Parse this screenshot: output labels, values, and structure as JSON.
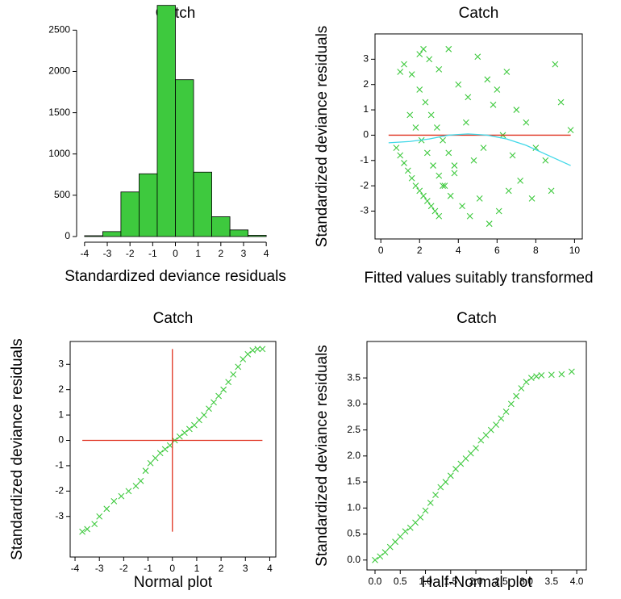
{
  "chart_data": [
    {
      "type": "histogram",
      "title": "Catch",
      "x_label": "Standardized deviance residuals",
      "color": "#3ec93e",
      "box": false,
      "bins": [
        -4,
        -3.2,
        -2.4,
        -1.6,
        -0.8,
        0,
        0.8,
        1.6,
        2.4,
        3.2,
        4
      ],
      "values": [
        10,
        60,
        540,
        760,
        2800,
        1900,
        780,
        240,
        80,
        15
      ],
      "xlim": [
        -4.35,
        4.35
      ],
      "xticks": [
        -4,
        -3,
        -2,
        -1,
        0,
        1,
        2,
        3,
        4
      ],
      "ylim": [
        0,
        2650
      ],
      "yticks": [
        0,
        500,
        1000,
        1500,
        2000,
        2500
      ]
    },
    {
      "type": "scatter",
      "title": "Catch",
      "x_label": "Fitted values suitably transformed",
      "y_label": "Standardized deviance residuals",
      "color": "#3ec93e",
      "box": true,
      "x": [
        0.8,
        1.0,
        1.2,
        1.4,
        1.6,
        1.8,
        2.0,
        2.2,
        2.4,
        2.6,
        2.8,
        3.0,
        1.5,
        1.8,
        2.1,
        2.4,
        2.7,
        3.0,
        3.3,
        3.6,
        2.0,
        2.3,
        2.6,
        2.9,
        3.2,
        3.5,
        3.8,
        1.2,
        1.6,
        2.0,
        2.5,
        3.0,
        3.5,
        4.0,
        4.5,
        5.0,
        5.5,
        6.0,
        6.5,
        7.0,
        7.5,
        8.0,
        8.5,
        9.0,
        9.8,
        3.2,
        3.8,
        4.2,
        4.6,
        5.1,
        5.6,
        6.1,
        6.6,
        7.2,
        4.4,
        5.3,
        6.3,
        1.0,
        2.2,
        4.8,
        5.8,
        6.8,
        7.8,
        8.8,
        9.3
      ],
      "y": [
        -0.5,
        -0.8,
        -1.1,
        -1.4,
        -1.7,
        -2.0,
        -2.2,
        -2.4,
        -2.6,
        -2.8,
        -3.0,
        -3.2,
        0.8,
        0.3,
        -0.2,
        -0.7,
        -1.2,
        -1.6,
        -2.0,
        -2.4,
        1.8,
        1.3,
        0.8,
        0.3,
        -0.2,
        -0.7,
        -1.2,
        2.8,
        2.4,
        3.2,
        3.0,
        2.6,
        3.4,
        2.0,
        1.5,
        3.1,
        2.2,
        1.8,
        2.5,
        1.0,
        0.5,
        -0.5,
        -1.0,
        2.8,
        0.2,
        -2.0,
        -1.5,
        -2.8,
        -3.2,
        -2.5,
        -3.5,
        -3.0,
        -2.2,
        -1.8,
        0.5,
        -0.5,
        0.0,
        2.5,
        3.4,
        -1.0,
        1.2,
        -0.8,
        -2.5,
        -2.2,
        1.3
      ],
      "lines": [
        {
          "color": "#e0301e",
          "x": [
            0.4,
            9.8
          ],
          "y": [
            0,
            0
          ]
        },
        {
          "color": "#40d8e8",
          "x": [
            0.4,
            1.5,
            2.5,
            3.5,
            4.5,
            5.5,
            6.5,
            7.5,
            8.5,
            9.8
          ],
          "y": [
            -0.3,
            -0.25,
            -0.15,
            0,
            0.05,
            0,
            -0.15,
            -0.4,
            -0.75,
            -1.2
          ]
        }
      ],
      "xlim": [
        -0.3,
        10.4
      ],
      "xticks": [
        0,
        2,
        4,
        6,
        8,
        10
      ],
      "ylim": [
        -4.1,
        4.0
      ],
      "yticks": [
        -3,
        -2,
        -1,
        0,
        1,
        2,
        3
      ]
    },
    {
      "type": "scatter",
      "title": "Catch",
      "x_label": "Normal plot",
      "y_label": "Standardized deviance residuals",
      "color": "#3ec93e",
      "box": true,
      "x": [
        -3.7,
        -3.5,
        -3.2,
        -3.0,
        -2.7,
        -2.4,
        -2.1,
        -1.8,
        -1.5,
        -1.3,
        -1.1,
        -0.9,
        -0.7,
        -0.5,
        -0.3,
        -0.1,
        0.1,
        0.3,
        0.5,
        0.7,
        0.9,
        1.1,
        1.3,
        1.5,
        1.7,
        1.9,
        2.1,
        2.3,
        2.5,
        2.7,
        2.9,
        3.1,
        3.3,
        3.5,
        3.7
      ],
      "y": [
        -3.6,
        -3.5,
        -3.3,
        -3.0,
        -2.7,
        -2.4,
        -2.2,
        -2.0,
        -1.8,
        -1.6,
        -1.2,
        -0.9,
        -0.7,
        -0.5,
        -0.35,
        -0.2,
        0.0,
        0.15,
        0.3,
        0.45,
        0.6,
        0.8,
        1.0,
        1.25,
        1.5,
        1.75,
        2.0,
        2.3,
        2.6,
        2.9,
        3.2,
        3.4,
        3.55,
        3.6,
        3.6
      ],
      "lines": [
        {
          "color": "#e0301e",
          "x": [
            0,
            0
          ],
          "y": [
            -3.6,
            3.6
          ]
        },
        {
          "color": "#e0301e",
          "x": [
            -3.7,
            3.7
          ],
          "y": [
            0,
            0
          ]
        }
      ],
      "xlim": [
        -4.2,
        4.25
      ],
      "xticks": [
        -4,
        -3,
        -2,
        -1,
        0,
        1,
        2,
        3,
        4
      ],
      "ylim": [
        -4.6,
        3.9
      ],
      "yticks": [
        -3,
        -2,
        -1,
        0,
        1,
        2,
        3
      ]
    },
    {
      "type": "scatter",
      "title": "Catch",
      "x_label": "Half-Normal plot",
      "y_label": "Standardized deviance residuals",
      "color": "#3ec93e",
      "box": true,
      "x": [
        0.0,
        0.1,
        0.2,
        0.3,
        0.4,
        0.5,
        0.6,
        0.7,
        0.8,
        0.9,
        1.0,
        1.1,
        1.2,
        1.3,
        1.4,
        1.5,
        1.6,
        1.7,
        1.8,
        1.9,
        2.0,
        2.1,
        2.2,
        2.3,
        2.4,
        2.5,
        2.6,
        2.7,
        2.8,
        2.9,
        3.0,
        3.1,
        3.2,
        3.3,
        3.5,
        3.7,
        3.9
      ],
      "y": [
        0.0,
        0.07,
        0.15,
        0.25,
        0.35,
        0.45,
        0.55,
        0.62,
        0.72,
        0.82,
        0.95,
        1.1,
        1.25,
        1.4,
        1.5,
        1.62,
        1.75,
        1.85,
        1.95,
        2.05,
        2.15,
        2.3,
        2.4,
        2.5,
        2.6,
        2.72,
        2.85,
        3.0,
        3.15,
        3.3,
        3.42,
        3.5,
        3.53,
        3.55,
        3.56,
        3.57,
        3.62
      ],
      "xlim": [
        -0.16,
        4.19
      ],
      "xticks": [
        {
          "value": 0,
          "label": "0.0"
        },
        {
          "value": 0.5,
          "label": "0.5"
        },
        {
          "value": 1,
          "label": "1.0"
        },
        {
          "value": 1.5,
          "label": "1.5"
        },
        {
          "value": 2,
          "label": "2.0"
        },
        {
          "value": 2.5,
          "label": "2.5"
        },
        {
          "value": 3,
          "label": "3.0"
        },
        {
          "value": 3.5,
          "label": "3.5"
        },
        {
          "value": 4,
          "label": "4.0"
        }
      ],
      "ylim": [
        -0.19,
        4.2
      ],
      "yticks": [
        {
          "value": 0,
          "label": "0.0"
        },
        {
          "value": 0.5,
          "label": "0.5"
        },
        {
          "value": 1,
          "label": "1.0"
        },
        {
          "value": 1.5,
          "label": "1.5"
        },
        {
          "value": 2,
          "label": "2.0"
        },
        {
          "value": 2.5,
          "label": "2.5"
        },
        {
          "value": 3,
          "label": "3.0"
        },
        {
          "value": 3.5,
          "label": "3.5"
        }
      ]
    }
  ]
}
